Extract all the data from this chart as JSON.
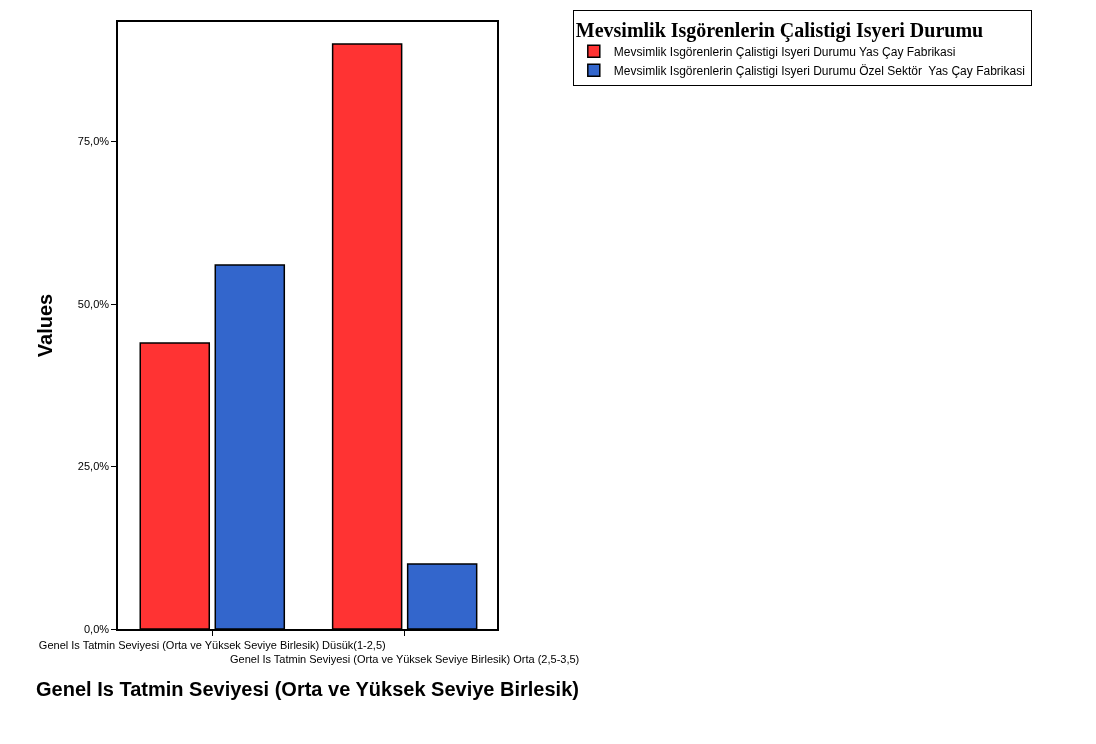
{
  "chart_data": {
    "type": "bar",
    "xlabel": "Genel Is Tatmin Seviyesi (Orta ve Yüksek Seviye Birlesik)",
    "ylabel": "Values",
    "legend_title": "Mevsimlik Isgörenlerin Çalistigi Isyeri Durumu",
    "categories": [
      "Genel Is Tatmin Seviyesi (Orta ve Yüksek Seviye Birlesik) Düsük(1-2,5)",
      "Genel Is Tatmin Seviyesi (Orta ve Yüksek Seviye Birlesik) Orta (2,5-3,5)"
    ],
    "series": [
      {
        "name": "Mevsimlik Isgörenlerin Çalistigi Isyeri Durumu Yas Çay Fabrikasi",
        "color": "#ff3333",
        "values": [
          44,
          90
        ]
      },
      {
        "name": "Mevsimlik Isgörenlerin Çalistigi Isyeri Durumu Özel Sektör  Yas Çay Fabrikasi",
        "color": "#3366cc",
        "values": [
          56,
          10
        ]
      }
    ],
    "ylim": [
      0,
      93.4
    ],
    "yticks": [
      {
        "value": 0,
        "label": "0,0%"
      },
      {
        "value": 25,
        "label": "25,0%"
      },
      {
        "value": 50,
        "label": "50,0%"
      },
      {
        "value": 75,
        "label": "75,0%"
      }
    ],
    "grid": false,
    "legend": "top right"
  }
}
